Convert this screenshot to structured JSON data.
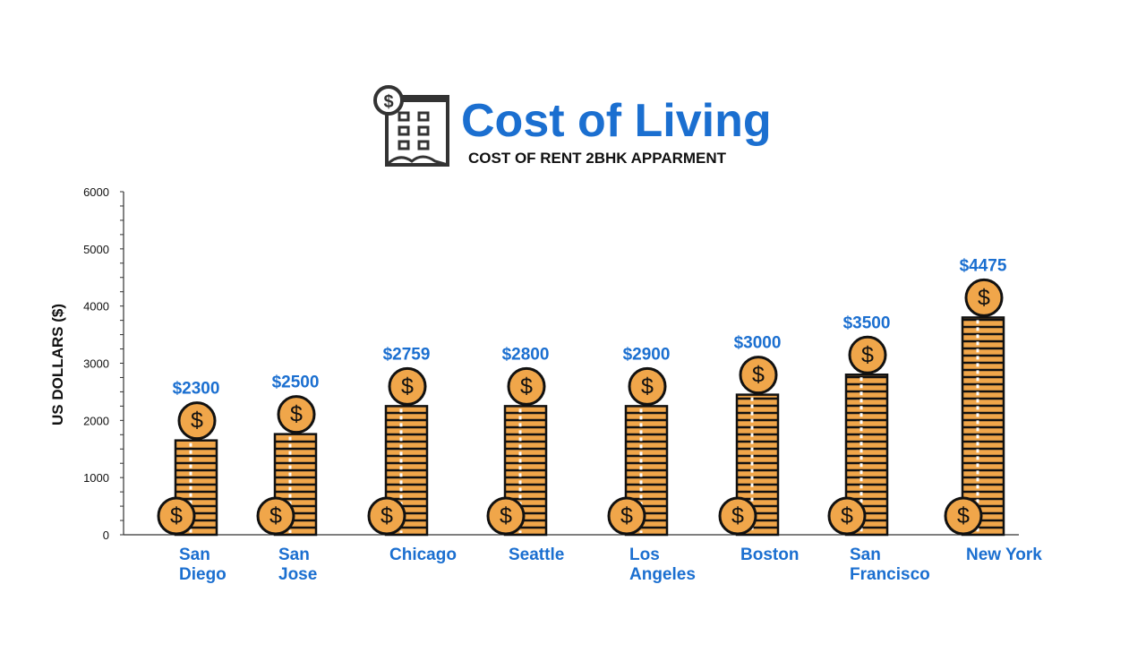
{
  "header": {
    "title": "Cost of Living",
    "subtitle": "COST OF RENT 2BHK APPARMENT"
  },
  "colors": {
    "accent": "#1b6fd0",
    "coin": "#f0a64a",
    "outline": "#111111",
    "axis": "#333333"
  },
  "icons": {
    "header": "building-dollar-icon",
    "coin": "dollar-coin-icon"
  },
  "chart_data": {
    "type": "bar",
    "ylabel": "US DOLLARS ($)",
    "xlabel": "",
    "ylim": [
      0,
      6000
    ],
    "yticks": [
      0,
      1000,
      2000,
      3000,
      4000,
      5000,
      6000
    ],
    "categories": [
      [
        "San",
        "Diego"
      ],
      [
        "San",
        "Jose"
      ],
      [
        "Chicago"
      ],
      [
        "Seattle"
      ],
      [
        "Los",
        "Angeles"
      ],
      [
        "Boston"
      ],
      [
        "San",
        "Francisco"
      ],
      [
        "New York"
      ]
    ],
    "values": [
      2300,
      2500,
      2759,
      2800,
      2900,
      3000,
      3500,
      4475
    ],
    "value_labels": [
      "$2300",
      "$2500",
      "$2759",
      "$2800",
      "$2900",
      "$3000",
      "$3500",
      "$4475"
    ],
    "stack_heights": [
      1650,
      1760,
      2250,
      2250,
      2250,
      2450,
      2800,
      3800
    ],
    "grid": false,
    "legend": "none"
  }
}
